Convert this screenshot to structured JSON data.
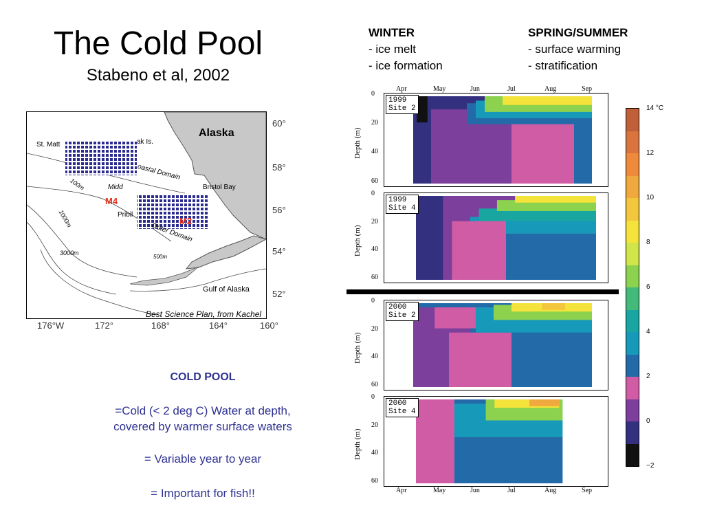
{
  "slide": {
    "title": "The Cold Pool",
    "subtitle": "Stabeno et al, 2002"
  },
  "legend_text": {
    "winter_title": "WINTER",
    "winter_items": [
      "- ice melt",
      "- ice formation"
    ],
    "summer_title": "SPRING/SUMMER",
    "summer_items": [
      "- surface warming",
      "- stratification"
    ]
  },
  "map": {
    "labels": {
      "alaska": "Alaska",
      "st_matt": "St. Matt",
      "ak_is": "ak Is.",
      "coastal_domain": "oastal Domain",
      "middle": "Midd",
      "bristol_bay": "Bristol Bay",
      "pribil": "Pribil",
      "outer_domain": "Outer Domain",
      "m100": "100m",
      "m1000": "1000m",
      "m3000": "3000m",
      "m500": "500m",
      "gulf": "Gulf of Alaska"
    },
    "markers": {
      "m4": "M4",
      "m2": "M2"
    },
    "credit": "Best Science Plan, from Kachel",
    "lat_labels": [
      "60°",
      "58°",
      "56°",
      "54°",
      "52°"
    ],
    "lon_labels": [
      "176°W",
      "172°",
      "168°",
      "164°",
      "160°"
    ]
  },
  "cold_pool": {
    "title": "COLD POOL",
    "line1": "=Cold (< 2 deg C) Water at depth,",
    "line2": "covered by warmer surface waters",
    "line3": "= Variable year to year",
    "line4": "= Important for fish!!"
  },
  "plots": {
    "months": [
      "Apr",
      "May",
      "Jun",
      "Jul",
      "Aug",
      "Sep"
    ],
    "depth_label": "Depth (m)",
    "depth_ticks": [
      "0",
      "20",
      "40",
      "60"
    ],
    "panels": [
      {
        "year": "1999",
        "site": "Site 2"
      },
      {
        "year": "1999",
        "site": "Site 4"
      },
      {
        "year": "2000",
        "site": "Site 2"
      },
      {
        "year": "2000",
        "site": "Site 4"
      }
    ]
  },
  "colorbar": {
    "labels": [
      "14 °C",
      "12",
      "10",
      "8",
      "6",
      "4",
      "2",
      "0",
      "−2"
    ],
    "colors": [
      "#c0603a",
      "#d9743f",
      "#ef8a3c",
      "#f0a93e",
      "#f2c63d",
      "#f3e33a",
      "#cfe54a",
      "#8cd24f",
      "#43b97a",
      "#1aa6a0",
      "#1799b9",
      "#236aa8",
      "#cf5ca4",
      "#7c3f9b",
      "#33307f",
      "#111111"
    ]
  }
}
